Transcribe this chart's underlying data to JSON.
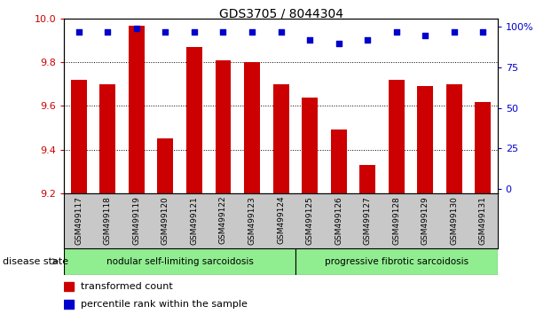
{
  "title": "GDS3705 / 8044304",
  "samples": [
    "GSM499117",
    "GSM499118",
    "GSM499119",
    "GSM499120",
    "GSM499121",
    "GSM499122",
    "GSM499123",
    "GSM499124",
    "GSM499125",
    "GSM499126",
    "GSM499127",
    "GSM499128",
    "GSM499129",
    "GSM499130",
    "GSM499131"
  ],
  "bar_values": [
    9.72,
    9.7,
    9.97,
    9.45,
    9.87,
    9.81,
    9.8,
    9.7,
    9.64,
    9.49,
    9.33,
    9.72,
    9.69,
    9.7,
    9.62
  ],
  "percentile_values": [
    97,
    97,
    99,
    97,
    97,
    97,
    97,
    97,
    92,
    90,
    92,
    97,
    95,
    97,
    97
  ],
  "ymin": 9.2,
  "ymax": 10.0,
  "yticks": [
    9.2,
    9.4,
    9.6,
    9.8,
    10.0
  ],
  "right_yticks": [
    0,
    25,
    50,
    75,
    100
  ],
  "bar_color": "#cc0000",
  "dot_color": "#0000cc",
  "grid_color": "#000000",
  "group1_label": "nodular self-limiting sarcoidosis",
  "group2_label": "progressive fibrotic sarcoidosis",
  "group1_color": "#90ee90",
  "group2_color": "#90ee90",
  "group1_count": 8,
  "group2_count": 7,
  "disease_state_label": "disease state",
  "legend_bar_label": "transformed count",
  "legend_dot_label": "percentile rank within the sample",
  "tick_label_color_left": "#cc0000",
  "tick_label_color_right": "#0000cc",
  "xaxis_bg": "#c8c8c8"
}
